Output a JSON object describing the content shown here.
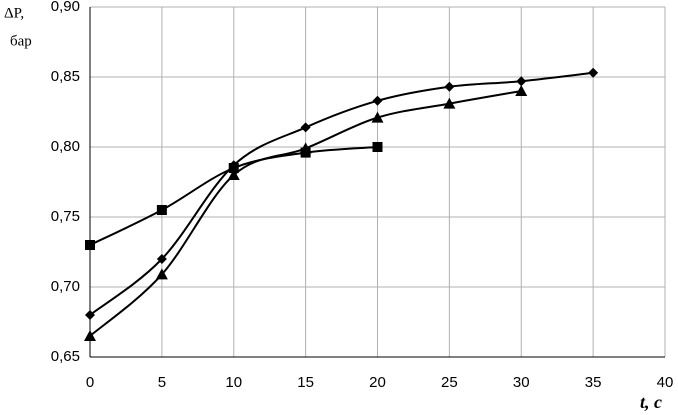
{
  "chart_data": {
    "type": "line",
    "ylabel": [
      "ΔP,",
      "бар"
    ],
    "xlabel": "t, с",
    "xlim": [
      0,
      40
    ],
    "xticks": [
      0,
      5,
      10,
      15,
      20,
      25,
      30,
      35,
      40
    ],
    "ylim": [
      0.65,
      0.9
    ],
    "yticks": [
      {
        "value": 0.65,
        "label": "0,65"
      },
      {
        "value": 0.7,
        "label": "0,70"
      },
      {
        "value": 0.75,
        "label": "0,75"
      },
      {
        "value": 0.8,
        "label": "0,80"
      },
      {
        "value": 0.85,
        "label": "0,85"
      },
      {
        "value": 0.9,
        "label": "0,90"
      }
    ],
    "grid": true,
    "series": [
      {
        "color": "#000000",
        "marker": "diamond",
        "x": [
          0,
          5,
          10,
          15,
          20,
          25,
          30,
          35
        ],
        "values": [
          0.68,
          0.72,
          0.787,
          0.814,
          0.833,
          0.843,
          0.847,
          0.853
        ]
      },
      {
        "color": "#000000",
        "marker": "square",
        "x": [
          0,
          5,
          10,
          15,
          20
        ],
        "values": [
          0.73,
          0.755,
          0.785,
          0.796,
          0.8
        ]
      },
      {
        "color": "#000000",
        "marker": "triangle",
        "x": [
          0,
          5,
          10,
          15,
          20,
          25,
          30
        ],
        "values": [
          0.665,
          0.709,
          0.78,
          0.799,
          0.821,
          0.831,
          0.84
        ]
      }
    ]
  }
}
